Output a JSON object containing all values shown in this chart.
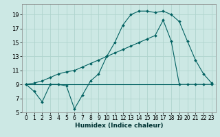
{
  "xlabel": "Humidex (Indice chaleur)",
  "bg_color": "#cce8e4",
  "grid_color": "#b0d4ce",
  "line_color": "#006060",
  "xlim": [
    -0.5,
    23.5
  ],
  "ylim": [
    5,
    20.5
  ],
  "xticks": [
    0,
    1,
    2,
    3,
    4,
    5,
    6,
    7,
    8,
    9,
    10,
    11,
    12,
    13,
    14,
    15,
    16,
    17,
    18,
    19,
    20,
    21,
    22,
    23
  ],
  "yticks": [
    5,
    7,
    9,
    11,
    13,
    15,
    17,
    19
  ],
  "series1_x": [
    0,
    1,
    2,
    3,
    4,
    5,
    6,
    7,
    8,
    9,
    10,
    11,
    12,
    13,
    14,
    15,
    16,
    17,
    18,
    19,
    20,
    21,
    22,
    23
  ],
  "series1_y": [
    9,
    8,
    6.5,
    9,
    9,
    8.8,
    5.5,
    7.5,
    9.5,
    10.5,
    13,
    15,
    17.5,
    19,
    19.5,
    19.5,
    19.3,
    19.5,
    19.0,
    18.0,
    15.2,
    12.5,
    10.5,
    9.2
  ],
  "series2_x": [
    0,
    1,
    2,
    3,
    4,
    5,
    6,
    7,
    8,
    9,
    10,
    11,
    12,
    13,
    14,
    15,
    16,
    17,
    18,
    19,
    20,
    21,
    22,
    23
  ],
  "series2_y": [
    9,
    9.2,
    9.5,
    10,
    10.5,
    10.8,
    11,
    11.5,
    12,
    12.5,
    13,
    13.5,
    14,
    14.5,
    15,
    15.5,
    16,
    18.2,
    15.2,
    9,
    9,
    9,
    9,
    9
  ],
  "series3_x": [
    0,
    19
  ],
  "series3_y": [
    9,
    9
  ]
}
